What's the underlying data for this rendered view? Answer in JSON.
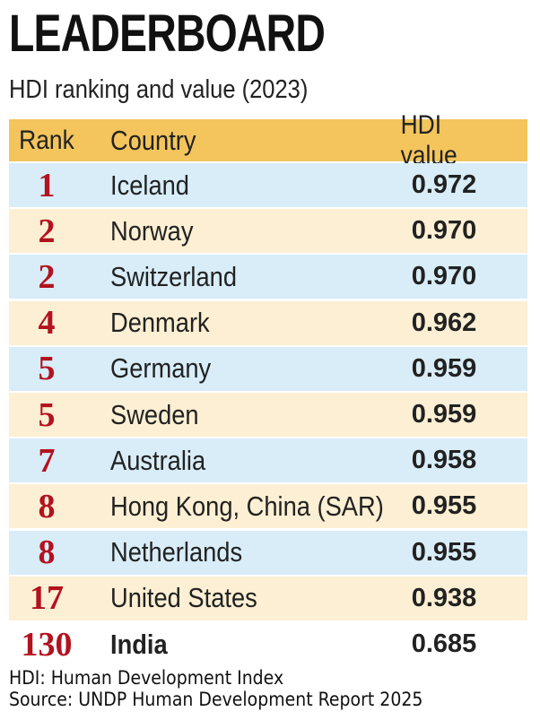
{
  "header": {
    "title": "LEADERBOARD",
    "subtitle": "HDI ranking and value (2023)"
  },
  "table": {
    "columns": [
      "Rank",
      "Country",
      "HDI value"
    ],
    "rows": [
      [
        "1",
        "Iceland",
        "0.972"
      ],
      [
        "2",
        "Norway",
        "0.970"
      ],
      [
        "2",
        "Switzerland",
        "0.970"
      ],
      [
        "4",
        "Denmark",
        "0.962"
      ],
      [
        "5",
        "Germany",
        "0.959"
      ],
      [
        "5",
        "Sweden",
        "0.959"
      ],
      [
        "7",
        "Australia",
        "0.958"
      ],
      [
        "8",
        "Hong Kong, China (SAR)",
        "0.955"
      ],
      [
        "8",
        "Netherlands",
        "0.955"
      ],
      [
        "17",
        "United States",
        "0.938"
      ],
      [
        "130",
        "India",
        "0.685"
      ]
    ]
  },
  "footer": {
    "note": "HDI: Human Development Index",
    "source": "Source: UNDP Human Development Report 2025"
  }
}
